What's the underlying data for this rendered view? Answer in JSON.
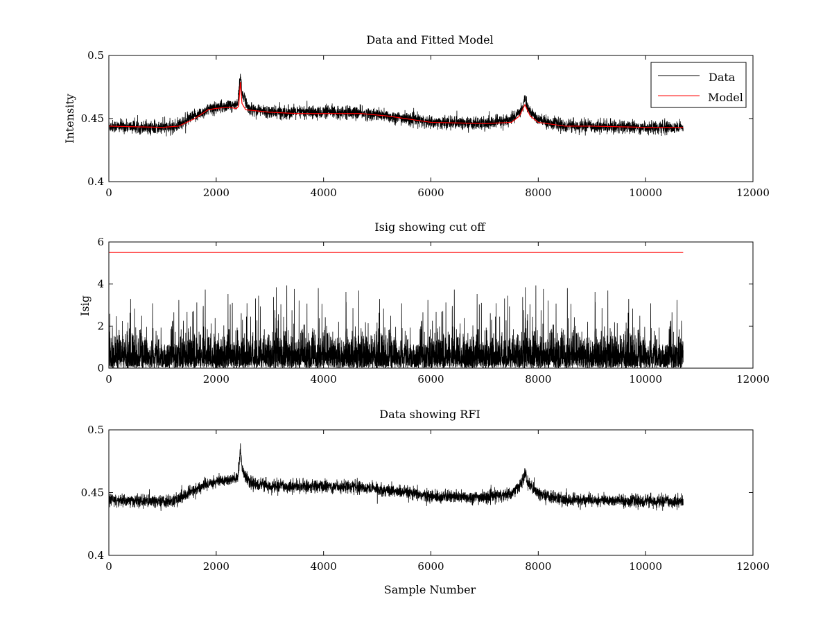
{
  "chart_data": [
    {
      "type": "line",
      "title": "Data and Fitted Model",
      "xlabel": "",
      "ylabel": "Intensity",
      "xlim": [
        0,
        12000
      ],
      "ylim": [
        0.4,
        0.5
      ],
      "xticks": [
        "0",
        "2000",
        "4000",
        "6000",
        "8000",
        "10000",
        "12000"
      ],
      "yticks": [
        "0.4",
        "0.45",
        "0.5"
      ],
      "legend": {
        "placement": "top-right",
        "entries": [
          "Data",
          "Model"
        ]
      },
      "series": [
        {
          "name": "Data",
          "color": "#000000",
          "x": [
            0,
            800,
            1200,
            1600,
            1900,
            2200,
            2400,
            2450,
            2480,
            2600,
            3000,
            3500,
            4000,
            4500,
            5000,
            6000,
            7000,
            7500,
            7700,
            7750,
            7800,
            8000,
            8500,
            9000,
            10000,
            10700
          ],
          "values": [
            0.444,
            0.443,
            0.443,
            0.452,
            0.458,
            0.46,
            0.461,
            0.485,
            0.47,
            0.458,
            0.455,
            0.455,
            0.455,
            0.455,
            0.453,
            0.447,
            0.446,
            0.449,
            0.458,
            0.466,
            0.458,
            0.449,
            0.444,
            0.444,
            0.443,
            0.443
          ],
          "noise_amplitude": 0.0045
        },
        {
          "name": "Model",
          "color": "#ff0000",
          "x": [
            0,
            1000,
            1300,
            1600,
            1850,
            2000,
            2200,
            2380,
            2420,
            2450,
            2480,
            2550,
            3000,
            3500,
            4000,
            4700,
            5200,
            6000,
            7000,
            7500,
            7650,
            7750,
            7850,
            8000,
            8500,
            9000,
            10000,
            10700
          ],
          "values": [
            0.444,
            0.443,
            0.444,
            0.45,
            0.457,
            0.458,
            0.459,
            0.458,
            0.46,
            0.479,
            0.462,
            0.457,
            0.455,
            0.454,
            0.454,
            0.454,
            0.452,
            0.447,
            0.446,
            0.447,
            0.452,
            0.461,
            0.452,
            0.447,
            0.444,
            0.444,
            0.443,
            0.443
          ]
        }
      ]
    },
    {
      "type": "line",
      "title": "Isig showing cut off",
      "xlabel": "",
      "ylabel": "Isig",
      "xlim": [
        0,
        12000
      ],
      "ylim": [
        0,
        6
      ],
      "xticks": [
        "0",
        "2000",
        "4000",
        "6000",
        "8000",
        "10000",
        "12000"
      ],
      "yticks": [
        "0",
        "2",
        "4",
        "6"
      ],
      "series": [
        {
          "name": "Isig",
          "color": "#000000",
          "x_range": [
            0,
            10700
          ],
          "typical_max": 2.0,
          "peak_max": 4.0
        },
        {
          "name": "cut off",
          "color": "#ff0000",
          "x": [
            0,
            10700
          ],
          "values": [
            5.5,
            5.5
          ]
        }
      ]
    },
    {
      "type": "line",
      "title": "Data showing RFI",
      "xlabel": "Sample Number",
      "ylabel": "",
      "xlim": [
        0,
        12000
      ],
      "ylim": [
        0.4,
        0.5
      ],
      "xticks": [
        "0",
        "2000",
        "4000",
        "6000",
        "8000",
        "10000",
        "12000"
      ],
      "yticks": [
        "0.4",
        "0.45",
        "0.5"
      ],
      "series": [
        {
          "name": "Data",
          "color": "#000000",
          "x": [
            0,
            800,
            1200,
            1600,
            1900,
            2200,
            2400,
            2450,
            2480,
            2600,
            3000,
            3500,
            4000,
            4500,
            5000,
            6000,
            7000,
            7500,
            7700,
            7750,
            7800,
            8000,
            8500,
            9000,
            10000,
            10700
          ],
          "values": [
            0.444,
            0.443,
            0.443,
            0.452,
            0.458,
            0.46,
            0.461,
            0.485,
            0.47,
            0.458,
            0.455,
            0.455,
            0.455,
            0.455,
            0.453,
            0.447,
            0.446,
            0.449,
            0.458,
            0.466,
            0.458,
            0.449,
            0.444,
            0.444,
            0.443,
            0.443
          ],
          "noise_amplitude": 0.0045
        }
      ]
    }
  ]
}
